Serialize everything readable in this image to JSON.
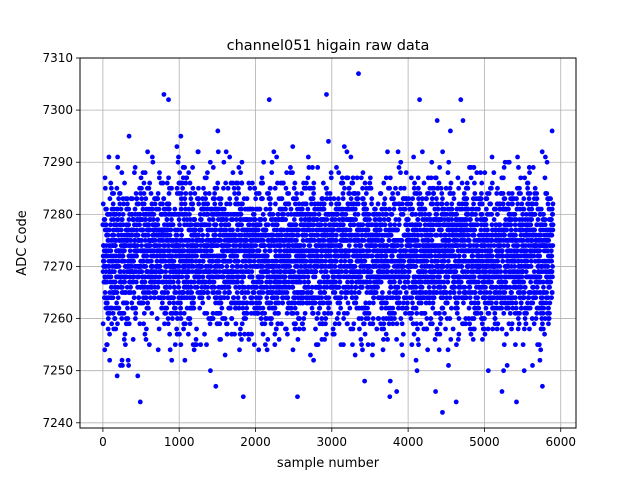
{
  "chart_data": {
    "type": "scatter",
    "title": "channel051 higain raw data",
    "xlabel": "sample number",
    "ylabel": "ADC Code",
    "xlim": [
      -300,
      6200
    ],
    "ylim": [
      7239,
      7310
    ],
    "xticks": [
      0,
      1000,
      2000,
      3000,
      4000,
      5000,
      6000
    ],
    "xtick_labels": [
      "0",
      "1000",
      "2000",
      "3000",
      "4000",
      "5000",
      "6000"
    ],
    "yticks": [
      7240,
      7250,
      7260,
      7270,
      7280,
      7290,
      7300,
      7310
    ],
    "ytick_labels": [
      "7240",
      "7250",
      "7260",
      "7270",
      "7280",
      "7290",
      "7300",
      "7310"
    ],
    "grid": true,
    "marker_color": "#0000ff",
    "series": [
      {
        "x_start": 0,
        "x_end": 5900,
        "n_points": 5900,
        "central_mean": 7272,
        "typical_range": [
          7255,
          7292
        ],
        "note_points": [
          {
            "x": 800,
            "y": 7303
          },
          {
            "x": 860,
            "y": 7302
          },
          {
            "x": 2180,
            "y": 7302
          },
          {
            "x": 2930,
            "y": 7303
          },
          {
            "x": 3350,
            "y": 7307
          },
          {
            "x": 4150,
            "y": 7302
          },
          {
            "x": 4690,
            "y": 7302
          },
          {
            "x": 490,
            "y": 7244
          },
          {
            "x": 2550,
            "y": 7245
          },
          {
            "x": 1840,
            "y": 7245
          },
          {
            "x": 3760,
            "y": 7245
          },
          {
            "x": 4450,
            "y": 7242
          },
          {
            "x": 4630,
            "y": 7244
          },
          {
            "x": 5420,
            "y": 7244
          },
          {
            "x": 5230,
            "y": 7246
          },
          {
            "x": 5760,
            "y": 7247
          },
          {
            "x": 1480,
            "y": 7247
          },
          {
            "x": 3850,
            "y": 7246
          },
          {
            "x": 4360,
            "y": 7246
          }
        ]
      }
    ]
  }
}
